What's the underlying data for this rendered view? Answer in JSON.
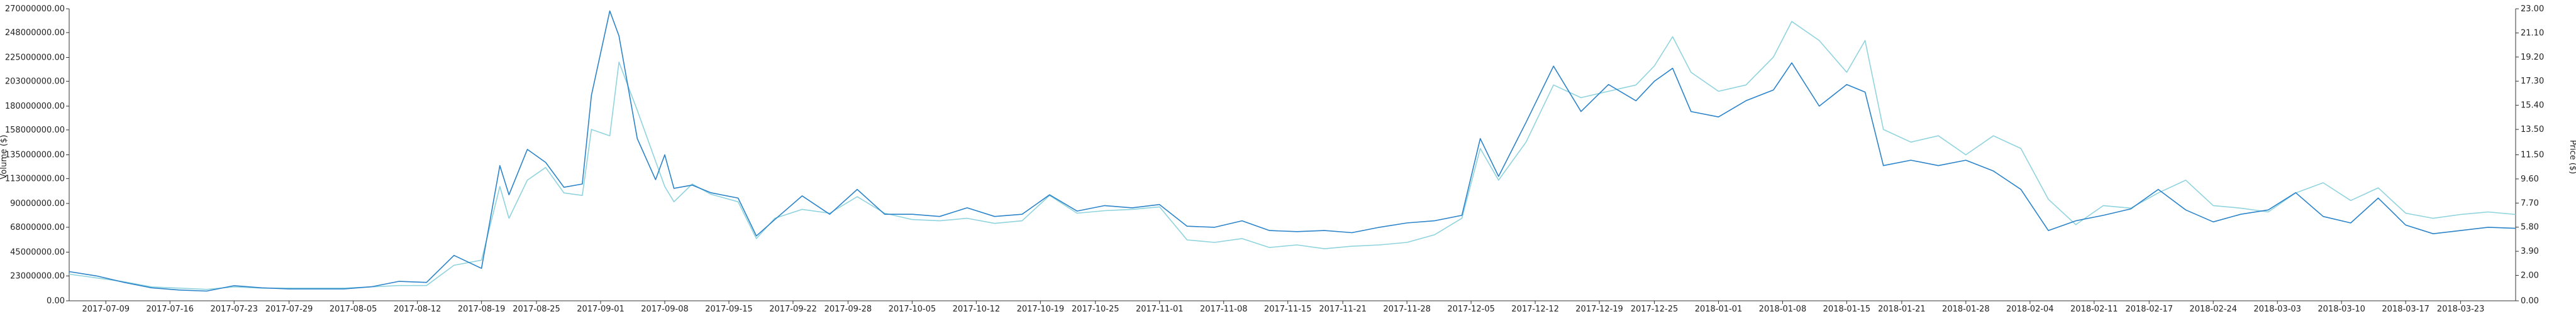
{
  "colors": {
    "volume": "#2b83c9",
    "price": "#8fd3de",
    "axis": "#333333"
  },
  "chart_data": {
    "type": "line",
    "title": "",
    "ylabel_left": "Volume ($)",
    "ylabel_right": "Price ($)",
    "left_ylim": [
      0,
      270000000
    ],
    "right_ylim": [
      0,
      23
    ],
    "left_ticks": [
      "0.00",
      "23000000.00",
      "45000000.00",
      "68000000.00",
      "90000000.00",
      "113000000.00",
      "135000000.00",
      "158000000.00",
      "180000000.00",
      "203000000.00",
      "225000000.00",
      "248000000.00",
      "270000000.00"
    ],
    "left_tick_values": [
      0,
      23000000,
      45000000,
      68000000,
      90000000,
      113000000,
      135000000,
      158000000,
      180000000,
      203000000,
      225000000,
      248000000,
      270000000
    ],
    "right_ticks": [
      "0.00",
      "2.00",
      "3.90",
      "5.80",
      "7.70",
      "9.60",
      "11.50",
      "13.50",
      "15.40",
      "17.30",
      "19.20",
      "21.10",
      "23.00"
    ],
    "right_tick_values": [
      0,
      2,
      3.9,
      5.8,
      7.7,
      9.6,
      11.5,
      13.5,
      15.4,
      17.3,
      19.2,
      21.1,
      23
    ],
    "x_start": "2017-07-05",
    "x_end": "2018-03-29",
    "x_ticks": [
      "2017-07-09",
      "2017-07-16",
      "2017-07-23",
      "2017-07-29",
      "2017-08-05",
      "2017-08-12",
      "2017-08-19",
      "2017-08-25",
      "2017-09-01",
      "2017-09-08",
      "2017-09-15",
      "2017-09-22",
      "2017-09-28",
      "2017-10-05",
      "2017-10-12",
      "2017-10-19",
      "2017-10-25",
      "2017-11-01",
      "2017-11-08",
      "2017-11-15",
      "2017-11-21",
      "2017-11-28",
      "2017-12-05",
      "2017-12-12",
      "2017-12-19",
      "2017-12-25",
      "2018-01-01",
      "2018-01-08",
      "2018-01-15",
      "2018-01-21",
      "2018-01-28",
      "2018-02-04",
      "2018-02-11",
      "2018-02-17",
      "2018-02-24",
      "2018-03-03",
      "2018-03-10",
      "2018-03-17",
      "2018-03-23"
    ],
    "series": [
      {
        "name": "Volume ($)",
        "axis": "left",
        "points": [
          [
            "2017-07-05",
            27000000
          ],
          [
            "2017-07-08",
            23000000
          ],
          [
            "2017-07-11",
            17000000
          ],
          [
            "2017-07-14",
            12000000
          ],
          [
            "2017-07-17",
            10000000
          ],
          [
            "2017-07-20",
            9000000
          ],
          [
            "2017-07-23",
            14000000
          ],
          [
            "2017-07-26",
            12000000
          ],
          [
            "2017-07-29",
            11000000
          ],
          [
            "2017-08-01",
            11000000
          ],
          [
            "2017-08-04",
            11000000
          ],
          [
            "2017-08-07",
            13000000
          ],
          [
            "2017-08-10",
            18000000
          ],
          [
            "2017-08-13",
            17000000
          ],
          [
            "2017-08-16",
            42000000
          ],
          [
            "2017-08-19",
            30000000
          ],
          [
            "2017-08-21",
            125000000
          ],
          [
            "2017-08-22",
            98000000
          ],
          [
            "2017-08-24",
            140000000
          ],
          [
            "2017-08-26",
            128000000
          ],
          [
            "2017-08-28",
            105000000
          ],
          [
            "2017-08-30",
            108000000
          ],
          [
            "2017-08-31",
            190000000
          ],
          [
            "2017-09-02",
            268000000
          ],
          [
            "2017-09-03",
            245000000
          ],
          [
            "2017-09-05",
            150000000
          ],
          [
            "2017-09-07",
            112000000
          ],
          [
            "2017-09-08",
            135000000
          ],
          [
            "2017-09-09",
            104000000
          ],
          [
            "2017-09-11",
            107000000
          ],
          [
            "2017-09-13",
            100000000
          ],
          [
            "2017-09-16",
            95000000
          ],
          [
            "2017-09-18",
            60000000
          ],
          [
            "2017-09-20",
            75000000
          ],
          [
            "2017-09-23",
            97000000
          ],
          [
            "2017-09-26",
            80000000
          ],
          [
            "2017-09-29",
            103000000
          ],
          [
            "2017-10-02",
            80000000
          ],
          [
            "2017-10-05",
            80000000
          ],
          [
            "2017-10-08",
            78000000
          ],
          [
            "2017-10-11",
            86000000
          ],
          [
            "2017-10-14",
            78000000
          ],
          [
            "2017-10-17",
            80000000
          ],
          [
            "2017-10-20",
            98000000
          ],
          [
            "2017-10-23",
            83000000
          ],
          [
            "2017-10-26",
            88000000
          ],
          [
            "2017-10-29",
            86000000
          ],
          [
            "2017-11-01",
            89000000
          ],
          [
            "2017-11-04",
            69000000
          ],
          [
            "2017-11-07",
            68000000
          ],
          [
            "2017-11-10",
            74000000
          ],
          [
            "2017-11-13",
            65000000
          ],
          [
            "2017-11-16",
            64000000
          ],
          [
            "2017-11-19",
            65000000
          ],
          [
            "2017-11-22",
            63000000
          ],
          [
            "2017-11-25",
            68000000
          ],
          [
            "2017-11-28",
            72000000
          ],
          [
            "2017-12-01",
            74000000
          ],
          [
            "2017-12-04",
            79000000
          ],
          [
            "2017-12-06",
            150000000
          ],
          [
            "2017-12-08",
            115000000
          ],
          [
            "2017-12-11",
            165000000
          ],
          [
            "2017-12-14",
            217000000
          ],
          [
            "2017-12-17",
            175000000
          ],
          [
            "2017-12-20",
            200000000
          ],
          [
            "2017-12-23",
            185000000
          ],
          [
            "2017-12-25",
            203000000
          ],
          [
            "2017-12-27",
            215000000
          ],
          [
            "2017-12-29",
            175000000
          ],
          [
            "2018-01-01",
            170000000
          ],
          [
            "2018-01-04",
            185000000
          ],
          [
            "2018-01-07",
            195000000
          ],
          [
            "2018-01-09",
            220000000
          ],
          [
            "2018-01-12",
            180000000
          ],
          [
            "2018-01-15",
            200000000
          ],
          [
            "2018-01-17",
            193000000
          ],
          [
            "2018-01-19",
            125000000
          ],
          [
            "2018-01-22",
            130000000
          ],
          [
            "2018-01-25",
            125000000
          ],
          [
            "2018-01-28",
            130000000
          ],
          [
            "2018-01-31",
            120000000
          ],
          [
            "2018-02-03",
            103000000
          ],
          [
            "2018-02-06",
            65000000
          ],
          [
            "2018-02-09",
            74000000
          ],
          [
            "2018-02-12",
            79000000
          ],
          [
            "2018-02-15",
            85000000
          ],
          [
            "2018-02-18",
            103000000
          ],
          [
            "2018-02-21",
            84000000
          ],
          [
            "2018-02-24",
            73000000
          ],
          [
            "2018-02-27",
            80000000
          ],
          [
            "2018-03-02",
            84000000
          ],
          [
            "2018-03-05",
            100000000
          ],
          [
            "2018-03-08",
            78000000
          ],
          [
            "2018-03-11",
            72000000
          ],
          [
            "2018-03-14",
            95000000
          ],
          [
            "2018-03-17",
            70000000
          ],
          [
            "2018-03-20",
            62000000
          ],
          [
            "2018-03-23",
            65000000
          ],
          [
            "2018-03-26",
            68000000
          ],
          [
            "2018-03-29",
            67000000
          ]
        ]
      },
      {
        "name": "Price ($)",
        "axis": "right",
        "points": [
          [
            "2017-07-05",
            2.1
          ],
          [
            "2017-07-08",
            1.8
          ],
          [
            "2017-07-11",
            1.5
          ],
          [
            "2017-07-14",
            1.1
          ],
          [
            "2017-07-17",
            1.0
          ],
          [
            "2017-07-20",
            0.9
          ],
          [
            "2017-07-23",
            1.1
          ],
          [
            "2017-07-26",
            1.0
          ],
          [
            "2017-07-29",
            1.0
          ],
          [
            "2017-08-01",
            1.0
          ],
          [
            "2017-08-04",
            1.0
          ],
          [
            "2017-08-07",
            1.1
          ],
          [
            "2017-08-10",
            1.2
          ],
          [
            "2017-08-13",
            1.2
          ],
          [
            "2017-08-16",
            2.8
          ],
          [
            "2017-08-19",
            3.2
          ],
          [
            "2017-08-21",
            9.0
          ],
          [
            "2017-08-22",
            6.5
          ],
          [
            "2017-08-24",
            9.5
          ],
          [
            "2017-08-26",
            10.5
          ],
          [
            "2017-08-28",
            8.5
          ],
          [
            "2017-08-30",
            8.3
          ],
          [
            "2017-08-31",
            13.5
          ],
          [
            "2017-09-02",
            13.0
          ],
          [
            "2017-09-03",
            18.8
          ],
          [
            "2017-09-05",
            15.0
          ],
          [
            "2017-09-07",
            11.0
          ],
          [
            "2017-09-08",
            9.0
          ],
          [
            "2017-09-09",
            7.8
          ],
          [
            "2017-09-11",
            9.2
          ],
          [
            "2017-09-13",
            8.4
          ],
          [
            "2017-09-16",
            7.8
          ],
          [
            "2017-09-18",
            4.9
          ],
          [
            "2017-09-20",
            6.5
          ],
          [
            "2017-09-23",
            7.2
          ],
          [
            "2017-09-26",
            6.9
          ],
          [
            "2017-09-29",
            8.2
          ],
          [
            "2017-10-02",
            6.9
          ],
          [
            "2017-10-05",
            6.4
          ],
          [
            "2017-10-08",
            6.3
          ],
          [
            "2017-10-11",
            6.5
          ],
          [
            "2017-10-14",
            6.1
          ],
          [
            "2017-10-17",
            6.3
          ],
          [
            "2017-10-20",
            8.3
          ],
          [
            "2017-10-23",
            6.9
          ],
          [
            "2017-10-26",
            7.1
          ],
          [
            "2017-10-29",
            7.2
          ],
          [
            "2017-11-01",
            7.4
          ],
          [
            "2017-11-04",
            4.8
          ],
          [
            "2017-11-07",
            4.6
          ],
          [
            "2017-11-10",
            4.9
          ],
          [
            "2017-11-13",
            4.2
          ],
          [
            "2017-11-16",
            4.4
          ],
          [
            "2017-11-19",
            4.1
          ],
          [
            "2017-11-22",
            4.3
          ],
          [
            "2017-11-25",
            4.4
          ],
          [
            "2017-11-28",
            4.6
          ],
          [
            "2017-12-01",
            5.2
          ],
          [
            "2017-12-04",
            6.5
          ],
          [
            "2017-12-06",
            12.0
          ],
          [
            "2017-12-08",
            9.5
          ],
          [
            "2017-12-11",
            12.5
          ],
          [
            "2017-12-14",
            17.0
          ],
          [
            "2017-12-17",
            16.0
          ],
          [
            "2017-12-20",
            16.5
          ],
          [
            "2017-12-23",
            17.0
          ],
          [
            "2017-12-25",
            18.5
          ],
          [
            "2017-12-27",
            20.8
          ],
          [
            "2017-12-29",
            18.0
          ],
          [
            "2018-01-01",
            16.5
          ],
          [
            "2018-01-04",
            17.0
          ],
          [
            "2018-01-07",
            19.2
          ],
          [
            "2018-01-09",
            22.0
          ],
          [
            "2018-01-12",
            20.5
          ],
          [
            "2018-01-15",
            18.0
          ],
          [
            "2018-01-17",
            20.5
          ],
          [
            "2018-01-19",
            13.5
          ],
          [
            "2018-01-22",
            12.5
          ],
          [
            "2018-01-25",
            13.0
          ],
          [
            "2018-01-28",
            11.5
          ],
          [
            "2018-01-31",
            13.0
          ],
          [
            "2018-02-03",
            12.0
          ],
          [
            "2018-02-06",
            8.0
          ],
          [
            "2018-02-09",
            6.0
          ],
          [
            "2018-02-12",
            7.5
          ],
          [
            "2018-02-15",
            7.3
          ],
          [
            "2018-02-18",
            8.5
          ],
          [
            "2018-02-21",
            9.5
          ],
          [
            "2018-02-24",
            7.5
          ],
          [
            "2018-02-27",
            7.3
          ],
          [
            "2018-03-02",
            7.0
          ],
          [
            "2018-03-05",
            8.5
          ],
          [
            "2018-03-08",
            9.3
          ],
          [
            "2018-03-11",
            7.9
          ],
          [
            "2018-03-14",
            8.9
          ],
          [
            "2018-03-17",
            6.9
          ],
          [
            "2018-03-20",
            6.5
          ],
          [
            "2018-03-23",
            6.8
          ],
          [
            "2018-03-26",
            7.0
          ],
          [
            "2018-03-29",
            6.8
          ]
        ]
      }
    ]
  }
}
